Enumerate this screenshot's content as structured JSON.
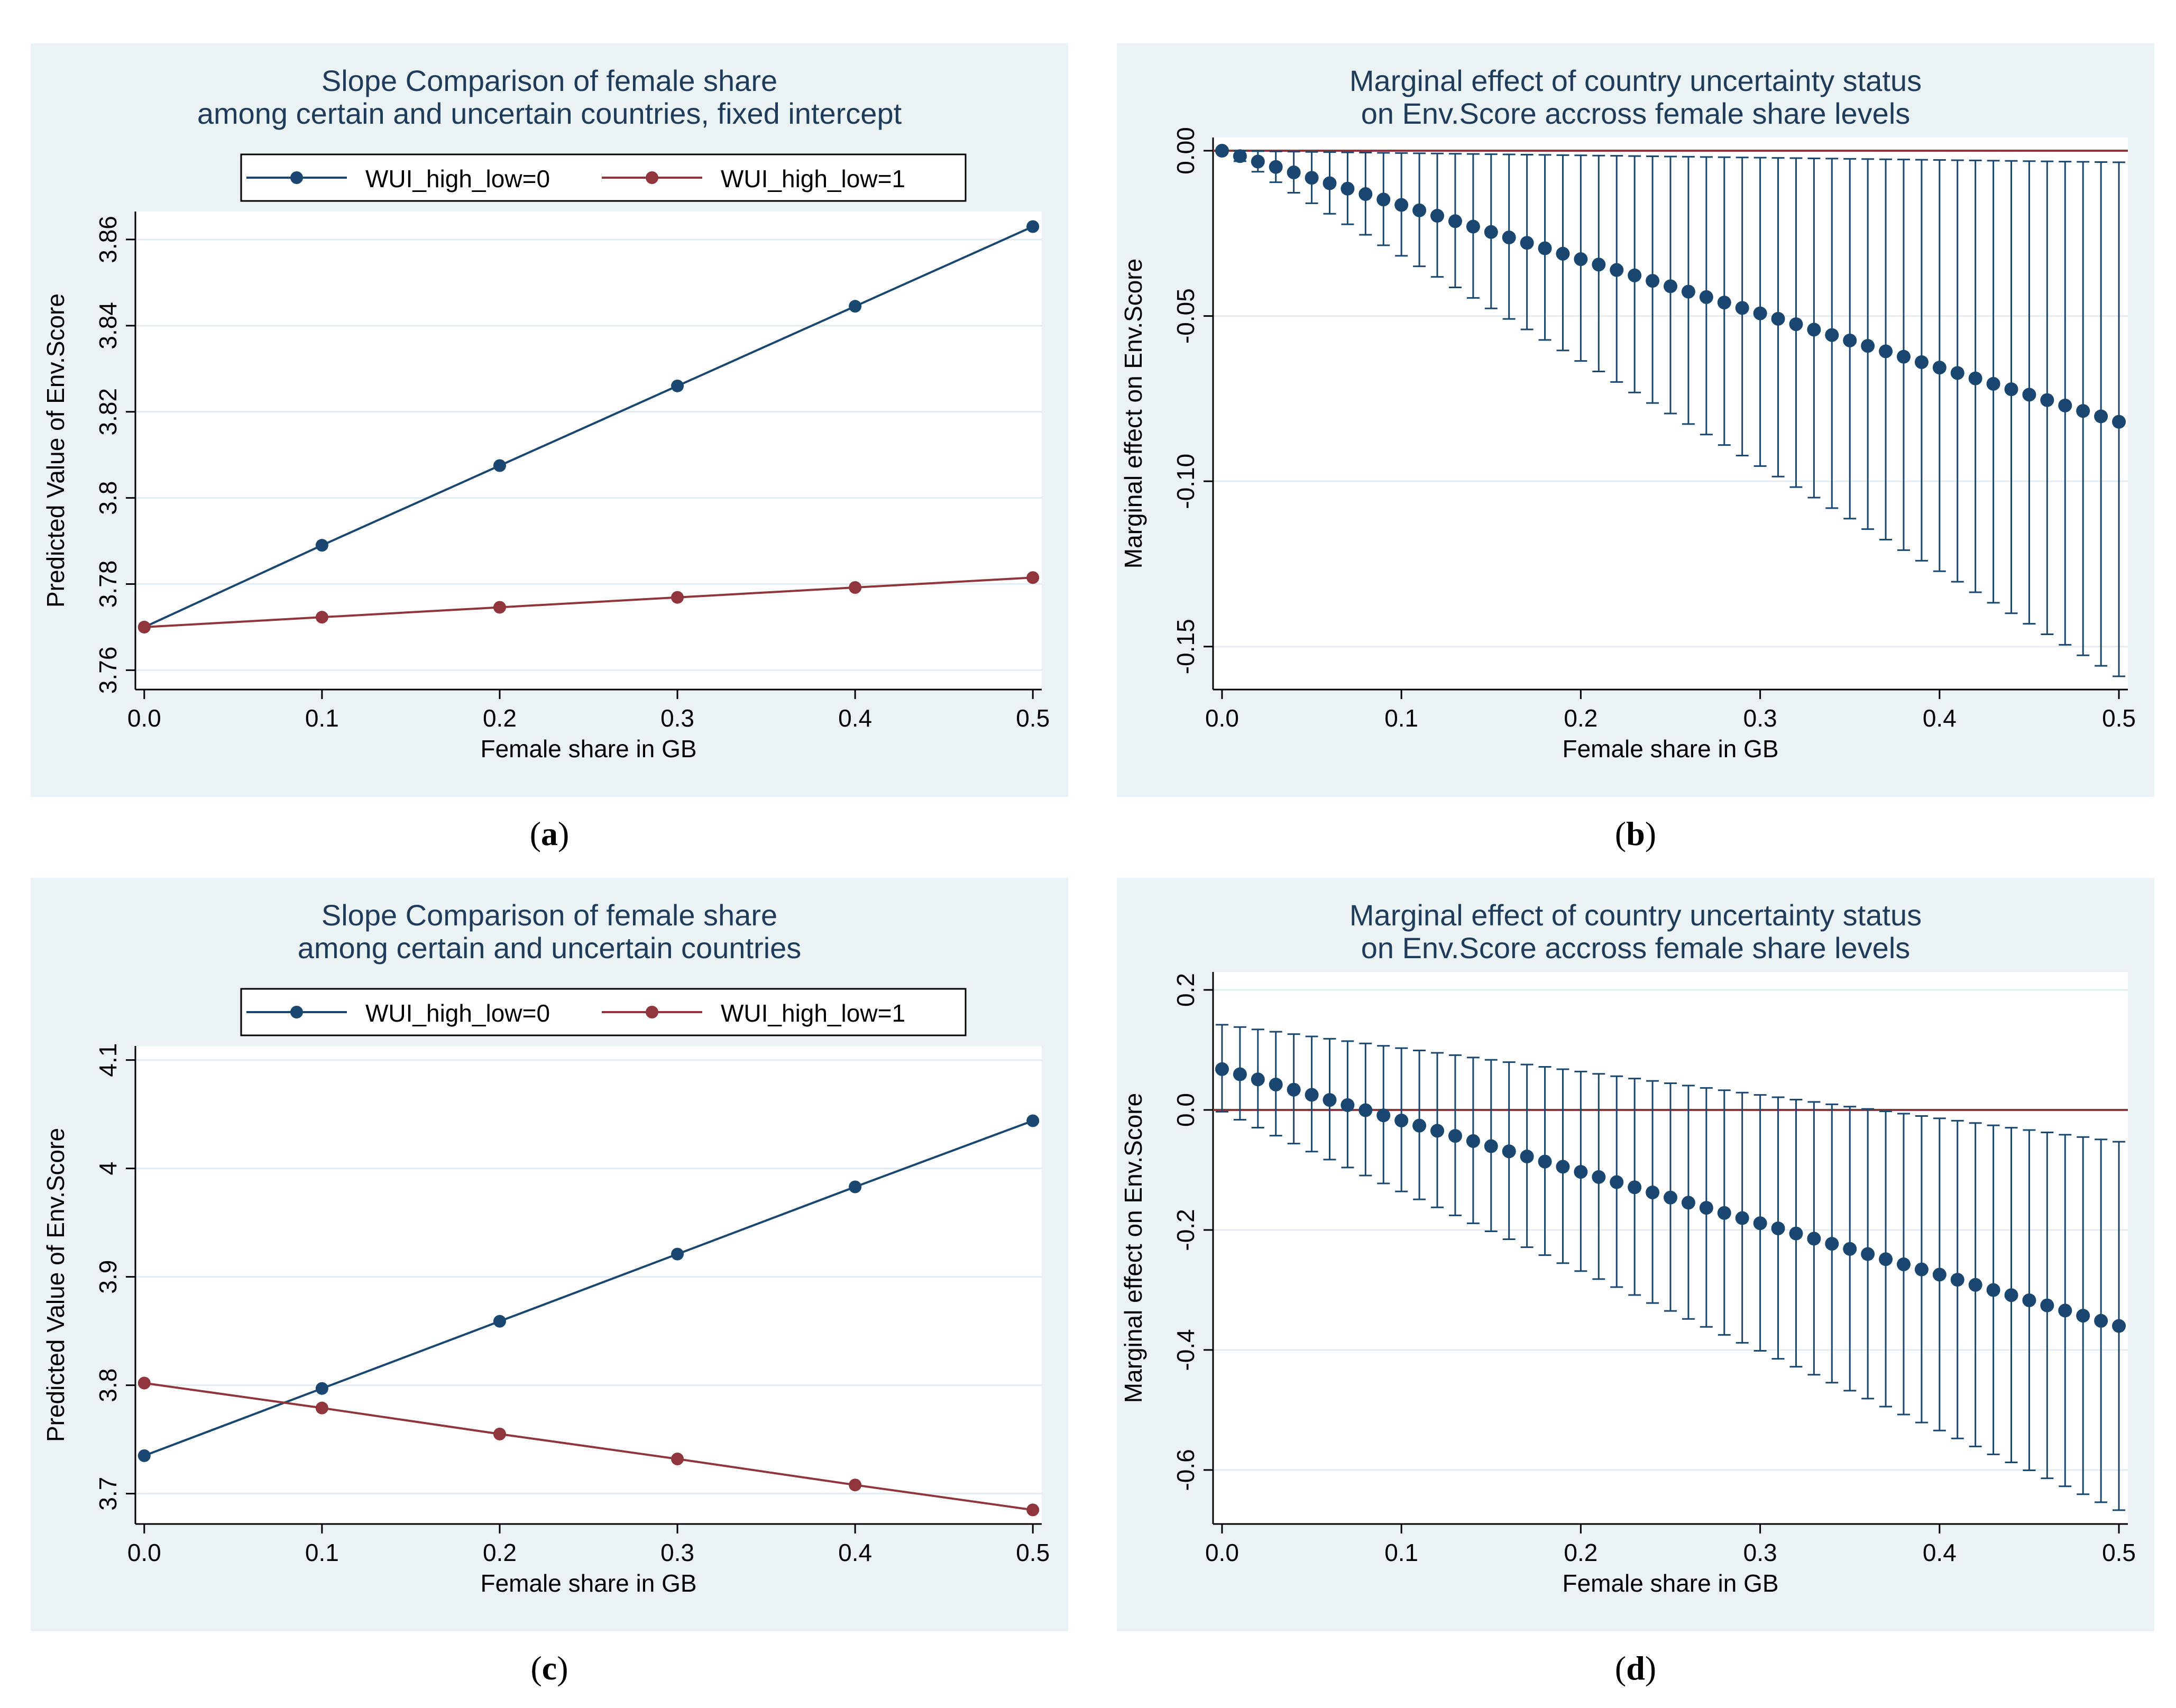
{
  "captions": {
    "a": "a",
    "b": "b",
    "c": "c",
    "d": "d"
  },
  "colors": {
    "navy": "#1a476f",
    "maroon": "#90353b",
    "panel_bg": "#eaf2f3",
    "plot_bg": "#ffffff",
    "grid": "#e3ecee",
    "title": "#1e3b5a"
  },
  "chart_data": [
    {
      "id": "a",
      "type": "line",
      "title": [
        "Slope Comparison of female share",
        "among certain and uncertain countries, fixed intercept"
      ],
      "xlabel": "Female share in GB",
      "ylabel": "Predicted Value of Env.Score",
      "x": [
        0.0,
        0.1,
        0.2,
        0.3,
        0.4,
        0.5
      ],
      "xlim": [
        -0.005,
        0.505
      ],
      "ylim": [
        3.7555,
        3.8665
      ],
      "xticks": [
        "0.0",
        "0.1",
        "0.2",
        "0.3",
        "0.4",
        "0.5"
      ],
      "yticks": [
        "3.76",
        "3.78",
        "3.8",
        "3.82",
        "3.84",
        "3.86"
      ],
      "legend": [
        "WUI_high_low=0",
        "WUI_high_low=1"
      ],
      "series": [
        {
          "name": "WUI_high_low=0",
          "values": [
            3.77,
            3.789,
            3.8075,
            3.826,
            3.8445,
            3.863
          ]
        },
        {
          "name": "WUI_high_low=1",
          "values": [
            3.77,
            3.7723,
            3.7746,
            3.7769,
            3.7792,
            3.7815
          ]
        }
      ]
    },
    {
      "id": "b",
      "type": "scatter",
      "title": [
        "Marginal effect of country uncertainty status",
        "on Env.Score accross female share levels"
      ],
      "xlabel": "Female share in GB",
      "ylabel": "Marginal effect on Env.Score",
      "x_start": 0.0,
      "x_end": 0.5,
      "n_points": 51,
      "xlim": [
        -0.005,
        0.505
      ],
      "ylim": [
        -0.163,
        0.004
      ],
      "xticks": [
        "0.0",
        "0.1",
        "0.2",
        "0.3",
        "0.4",
        "0.5"
      ],
      "yticks": [
        "0.00",
        "-0.05",
        "-0.10",
        "-0.15"
      ],
      "estimate": [
        0.0,
        -0.082
      ],
      "ci_upper": [
        0.0,
        -0.0035
      ],
      "ci_lower": [
        0.0,
        -0.159
      ],
      "reference_line": 0
    },
    {
      "id": "c",
      "type": "line",
      "title": [
        "Slope Comparison of female share",
        "among certain and uncertain countries"
      ],
      "xlabel": "Female share in GB",
      "ylabel": "Predicted Value of Env.Score",
      "x": [
        0.0,
        0.1,
        0.2,
        0.3,
        0.4,
        0.5
      ],
      "xlim": [
        -0.005,
        0.505
      ],
      "ylim": [
        3.672,
        4.113
      ],
      "xticks": [
        "0.0",
        "0.1",
        "0.2",
        "0.3",
        "0.4",
        "0.5"
      ],
      "yticks": [
        "3.7",
        "3.8",
        "3.9",
        "4",
        "4.1"
      ],
      "legend": [
        "WUI_high_low=0",
        "WUI_high_low=1"
      ],
      "series": [
        {
          "name": "WUI_high_low=0",
          "values": [
            3.735,
            3.797,
            3.859,
            3.921,
            3.983,
            4.044
          ]
        },
        {
          "name": "WUI_high_low=1",
          "values": [
            3.802,
            3.779,
            3.755,
            3.732,
            3.708,
            3.685
          ]
        }
      ]
    },
    {
      "id": "d",
      "type": "scatter",
      "title": [
        "Marginal effect of country uncertainty status",
        "on Env.Score accross female share levels"
      ],
      "xlabel": "Female share in GB",
      "ylabel": "Marginal effect on Env.Score",
      "x_start": 0.0,
      "x_end": 0.5,
      "n_points": 51,
      "xlim": [
        -0.005,
        0.505
      ],
      "ylim": [
        -0.69,
        0.23
      ],
      "xticks": [
        "0.0",
        "0.1",
        "0.2",
        "0.3",
        "0.4",
        "0.5"
      ],
      "yticks": [
        "0.2",
        "0.0",
        "-0.2",
        "-0.4",
        "-0.6"
      ],
      "estimate": [
        0.068,
        -0.36
      ],
      "ci_upper": [
        0.142,
        -0.053
      ],
      "ci_lower": [
        -0.003,
        -0.667
      ],
      "reference_line": 0
    }
  ]
}
